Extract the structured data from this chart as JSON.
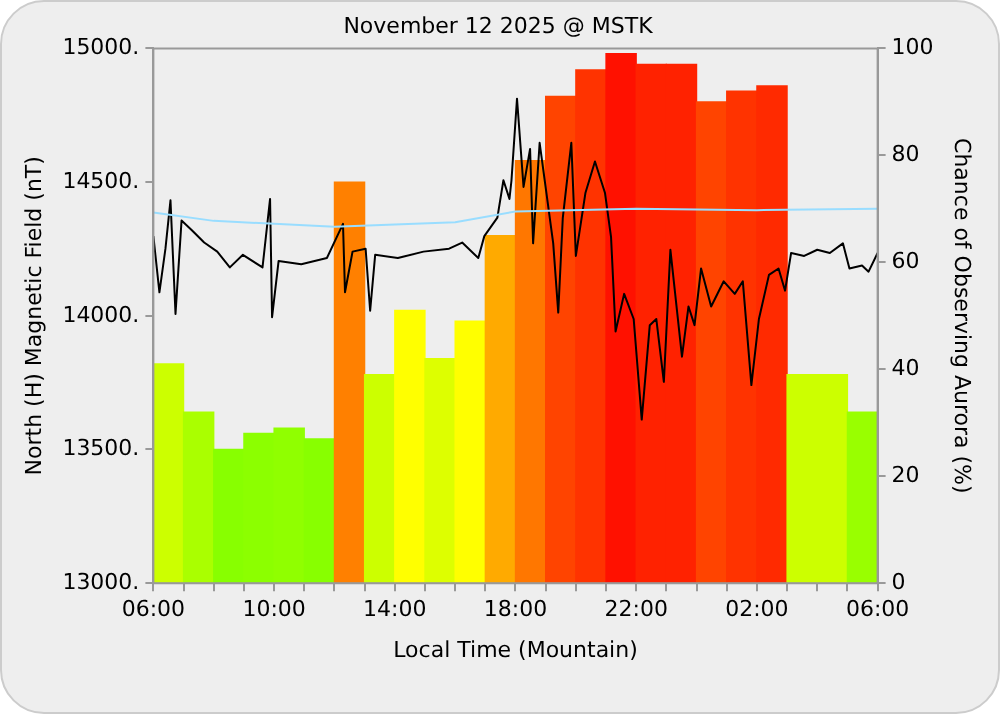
{
  "chart_data": {
    "type": "bar",
    "title": "November 12 2025 @ MSTK",
    "xlabel": "Local Time (Mountain)",
    "ylabel": "North (H) Magnetic Field (nT)",
    "y2label": "Chance of Observing Aurora (%)",
    "xlim": [
      "2025-11-12T06:00",
      "2025-11-13T06:00"
    ],
    "xticks": [
      {
        "value": "2025-11-12T06:00",
        "label": "06:00"
      },
      {
        "value": "2025-11-12T07:00",
        "label": null
      },
      {
        "value": "2025-11-12T08:00",
        "label": null
      },
      {
        "value": "2025-11-12T09:00",
        "label": null
      },
      {
        "value": "2025-11-12T10:00",
        "label": "10:00"
      },
      {
        "value": "2025-11-12T11:00",
        "label": null
      },
      {
        "value": "2025-11-12T12:00",
        "label": null
      },
      {
        "value": "2025-11-12T13:00",
        "label": null
      },
      {
        "value": "2025-11-12T14:00",
        "label": "14:00"
      },
      {
        "value": "2025-11-12T15:00",
        "label": null
      },
      {
        "value": "2025-11-12T16:00",
        "label": null
      },
      {
        "value": "2025-11-12T17:00",
        "label": null
      },
      {
        "value": "2025-11-12T18:00",
        "label": "18:00"
      },
      {
        "value": "2025-11-12T19:00",
        "label": null
      },
      {
        "value": "2025-11-12T20:00",
        "label": null
      },
      {
        "value": "2025-11-12T21:00",
        "label": null
      },
      {
        "value": "2025-11-12T22:00",
        "label": "22:00"
      },
      {
        "value": "2025-11-12T23:00",
        "label": null
      },
      {
        "value": "2025-11-13T00:00",
        "label": null
      },
      {
        "value": "2025-11-13T01:00",
        "label": null
      },
      {
        "value": "2025-11-13T02:00",
        "label": "02:00"
      },
      {
        "value": "2025-11-13T03:00",
        "label": null
      },
      {
        "value": "2025-11-13T04:00",
        "label": null
      },
      {
        "value": "2025-11-13T05:00",
        "label": null
      },
      {
        "value": "2025-11-13T06:00",
        "label": "06:00"
      }
    ],
    "ylim": [
      13000,
      15000
    ],
    "yticks": [
      {
        "value": 13000,
        "label": "13000."
      },
      {
        "value": 13500,
        "label": "13500."
      },
      {
        "value": 14000,
        "label": "14000."
      },
      {
        "value": 14500,
        "label": "14500."
      },
      {
        "value": 15000,
        "label": "15000."
      }
    ],
    "y2lim": [
      0,
      100
    ],
    "y2ticks": [
      0,
      20,
      40,
      60,
      80,
      100
    ],
    "grid": false,
    "legend": false,
    "series": [
      {
        "axis": "y2",
        "x": [
          "2025-11-12T06:30",
          "2025-11-12T07:30",
          "2025-11-12T08:30",
          "2025-11-12T09:30",
          "2025-11-12T10:30",
          "2025-11-12T11:30",
          "2025-11-12T12:30",
          "2025-11-12T13:30",
          "2025-11-12T14:30",
          "2025-11-12T15:30",
          "2025-11-12T16:30",
          "2025-11-12T17:30",
          "2025-11-12T18:30",
          "2025-11-12T19:30",
          "2025-11-12T20:30",
          "2025-11-12T21:30",
          "2025-11-12T22:30",
          "2025-11-12T23:30",
          "2025-11-13T00:30",
          "2025-11-13T01:30",
          "2025-11-13T02:30",
          "2025-11-13T03:30",
          "2025-11-13T04:30",
          "2025-11-13T05:30"
        ],
        "values": [
          41,
          32,
          25,
          28,
          29,
          27,
          75,
          39,
          51,
          42,
          49,
          65,
          79,
          91,
          96,
          99,
          97,
          97,
          90,
          92,
          93,
          39,
          39,
          32
        ],
        "colors": [
          "#ccff00",
          "#aaff00",
          "#88ff00",
          "#8cff00",
          "#90ff00",
          "#88ff00",
          "#ff8000",
          "#ccff00",
          "#ffff00",
          "#ddff00",
          "#ffff00",
          "#ffaa00",
          "#ff7700",
          "#ff4400",
          "#ff3300",
          "#ff1100",
          "#ff2200",
          "#ff2200",
          "#ff4400",
          "#ff3300",
          "#ff2a00",
          "#ccff00",
          "#ccff00",
          "#99ff00"
        ]
      },
      {
        "type": "line",
        "axis": "y",
        "color": "#99ddff",
        "x": [
          "2025-11-12T06:00",
          "2025-11-12T08:00",
          "2025-11-12T12:00",
          "2025-11-12T16:00",
          "2025-11-12T18:00",
          "2025-11-12T22:00",
          "2025-11-13T02:00",
          "2025-11-13T06:00"
        ],
        "values": [
          14386,
          14355,
          14333,
          14350,
          14390,
          14400,
          14395,
          14400
        ]
      },
      {
        "type": "line",
        "axis": "y",
        "color": "#000000",
        "x": [
          "2025-11-12T06:00",
          "2025-11-12T06:12",
          "2025-11-12T06:24",
          "2025-11-12T06:34",
          "2025-11-12T06:44",
          "2025-11-12T06:56",
          "2025-11-12T07:16",
          "2025-11-12T07:41",
          "2025-11-12T08:07",
          "2025-11-12T08:32",
          "2025-11-12T08:58",
          "2025-11-12T09:37",
          "2025-11-12T09:52",
          "2025-11-12T09:56",
          "2025-11-12T10:09",
          "2025-11-12T10:54",
          "2025-11-12T11:45",
          "2025-11-12T12:17",
          "2025-11-12T12:21",
          "2025-11-12T12:36",
          "2025-11-12T13:02",
          "2025-11-12T13:11",
          "2025-11-12T13:21",
          "2025-11-12T14:06",
          "2025-11-12T14:57",
          "2025-11-12T15:48",
          "2025-11-12T16:14",
          "2025-11-12T16:46",
          "2025-11-12T16:58",
          "2025-11-12T17:24",
          "2025-11-12T17:36",
          "2025-11-12T17:48",
          "2025-11-12T17:52",
          "2025-11-12T18:03",
          "2025-11-12T18:16",
          "2025-11-12T18:29",
          "2025-11-12T18:35",
          "2025-11-12T18:48",
          "2025-11-12T19:15",
          "2025-11-12T19:25",
          "2025-11-12T19:34",
          "2025-11-12T19:51",
          "2025-11-12T20:00",
          "2025-11-12T20:19",
          "2025-11-12T20:38",
          "2025-11-12T20:58",
          "2025-11-12T21:10",
          "2025-11-12T21:19",
          "2025-11-12T21:36",
          "2025-11-12T21:55",
          "2025-11-12T22:11",
          "2025-11-12T22:27",
          "2025-11-12T22:40",
          "2025-11-12T22:55",
          "2025-11-12T23:08",
          "2025-11-12T23:31",
          "2025-11-12T23:44",
          "2025-11-12T23:56",
          "2025-11-13T00:09",
          "2025-11-13T00:29",
          "2025-11-13T00:54",
          "2025-11-13T01:16",
          "2025-11-13T01:32",
          "2025-11-13T01:49",
          "2025-11-13T02:04",
          "2025-11-13T02:24",
          "2025-11-13T02:43",
          "2025-11-13T02:56",
          "2025-11-13T03:08",
          "2025-11-13T03:34",
          "2025-11-13T04:00",
          "2025-11-13T04:25",
          "2025-11-13T04:51",
          "2025-11-13T05:04",
          "2025-11-13T05:29",
          "2025-11-13T05:42",
          "2025-11-13T06:00"
        ],
        "values": [
          14298,
          14088,
          14251,
          14432,
          14007,
          14356,
          14321,
          14274,
          14240,
          14181,
          14228,
          14181,
          14437,
          13995,
          14205,
          14193,
          14216,
          14344,
          14088,
          14240,
          14251,
          14019,
          14228,
          14216,
          14240,
          14251,
          14274,
          14216,
          14298,
          14367,
          14507,
          14437,
          14506,
          14812,
          14482,
          14624,
          14271,
          14647,
          14271,
          14012,
          14365,
          14647,
          14224,
          14459,
          14577,
          14459,
          14294,
          13941,
          14082,
          13988,
          13612,
          13965,
          13988,
          13753,
          14247,
          13847,
          14035,
          13965,
          14177,
          14035,
          14129,
          14082,
          14129,
          13741,
          13988,
          14153,
          14177,
          14094,
          14235,
          14224,
          14247,
          14235,
          14271,
          14177,
          14188,
          14165,
          14235
        ]
      }
    ]
  }
}
